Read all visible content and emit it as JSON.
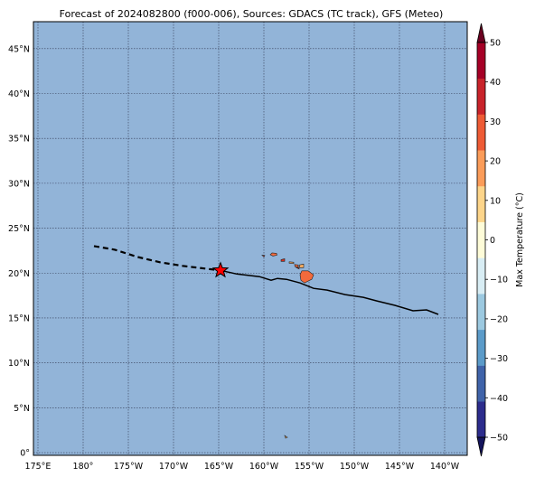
{
  "title": "Forecast of 2024082800 (f000-006), Sources: GDACS (TC track), GFS (Meteo)",
  "map": {
    "lon_range": [
      174.5,
      222.5
    ],
    "lat_range": [
      -0.3,
      48
    ],
    "ocean_color": "#92b4d8",
    "grid": true,
    "lon_ticks": [
      {
        "lon": 175,
        "label": "175°E"
      },
      {
        "lon": 180,
        "label": "180°"
      },
      {
        "lon": 185,
        "label": "175°W"
      },
      {
        "lon": 190,
        "label": "170°W"
      },
      {
        "lon": 195,
        "label": "165°W"
      },
      {
        "lon": 200,
        "label": "160°W"
      },
      {
        "lon": 205,
        "label": "155°W"
      },
      {
        "lon": 210,
        "label": "150°W"
      },
      {
        "lon": 215,
        "label": "145°W"
      },
      {
        "lon": 220,
        "label": "140°W"
      }
    ],
    "lat_ticks": [
      {
        "lat": 0,
        "label": "0°"
      },
      {
        "lat": 5,
        "label": "5°N"
      },
      {
        "lat": 10,
        "label": "10°N"
      },
      {
        "lat": 15,
        "label": "15°N"
      },
      {
        "lat": 20,
        "label": "20°N"
      },
      {
        "lat": 25,
        "label": "25°N"
      },
      {
        "lat": 30,
        "label": "30°N"
      },
      {
        "lat": 35,
        "label": "35°N"
      },
      {
        "lat": 40,
        "label": "40°N"
      },
      {
        "lat": 45,
        "label": "45°N"
      }
    ]
  },
  "track": {
    "past": [
      [
        181.2,
        23.0
      ],
      [
        183.5,
        22.6
      ],
      [
        186.0,
        21.8
      ],
      [
        188.5,
        21.2
      ],
      [
        191.0,
        20.8
      ],
      [
        193.5,
        20.5
      ],
      [
        195.2,
        20.3
      ]
    ],
    "forecast": [
      [
        195.2,
        20.3
      ],
      [
        197.0,
        19.9
      ],
      [
        199.5,
        19.6
      ],
      [
        200.8,
        19.2
      ],
      [
        201.5,
        19.4
      ],
      [
        202.5,
        19.3
      ],
      [
        204.0,
        18.9
      ],
      [
        205.5,
        18.3
      ],
      [
        207.0,
        18.1
      ],
      [
        209.0,
        17.6
      ],
      [
        211.0,
        17.3
      ],
      [
        212.5,
        16.9
      ],
      [
        214.5,
        16.4
      ],
      [
        216.5,
        15.8
      ],
      [
        218.0,
        15.9
      ],
      [
        219.3,
        15.4
      ]
    ],
    "current_position": [
      195.2,
      20.3
    ],
    "marker_color": "#ff0000"
  },
  "islands": [
    {
      "name": "",
      "lonlat": [
        [
          201.4,
          22.2
        ],
        [
          200.9,
          22.25
        ],
        [
          200.7,
          22.05
        ],
        [
          201.0,
          21.9
        ],
        [
          201.45,
          22.0
        ]
      ]
    },
    {
      "name": "",
      "lonlat": [
        [
          201.9,
          21.5
        ],
        [
          202.3,
          21.6
        ],
        [
          202.3,
          21.3
        ],
        [
          201.9,
          21.3
        ]
      ]
    },
    {
      "name": "",
      "lonlat": [
        [
          202.8,
          21.25
        ],
        [
          203.3,
          21.2
        ],
        [
          203.3,
          21.05
        ],
        [
          202.8,
          21.1
        ]
      ]
    },
    {
      "name": "",
      "lonlat": [
        [
          203.4,
          20.95
        ],
        [
          203.8,
          20.9
        ],
        [
          203.8,
          20.65
        ],
        [
          203.45,
          20.7
        ]
      ]
    },
    {
      "name": "",
      "lonlat": [
        [
          203.6,
          20.6
        ],
        [
          203.9,
          20.65
        ],
        [
          203.9,
          20.45
        ]
      ]
    },
    {
      "name": "",
      "lonlat": [
        [
          203.9,
          20.9
        ],
        [
          204.4,
          21.0
        ],
        [
          204.4,
          20.6
        ],
        [
          204.0,
          20.6
        ]
      ]
    },
    {
      "name": "",
      "lonlat": [
        [
          204.2,
          20.25
        ],
        [
          204.9,
          20.25
        ],
        [
          205.5,
          19.8
        ],
        [
          205.3,
          19.3
        ],
        [
          204.5,
          18.9
        ],
        [
          204.1,
          19.2
        ],
        [
          204.0,
          19.8
        ]
      ]
    },
    {
      "name": "",
      "lonlat": [
        [
          199.8,
          22.0
        ],
        [
          200.1,
          21.95
        ],
        [
          200.0,
          21.8
        ]
      ]
    },
    {
      "name": "",
      "lonlat": [
        [
          202.3,
          1.9
        ],
        [
          202.6,
          1.7
        ],
        [
          202.4,
          1.6
        ]
      ]
    }
  ],
  "island_colors": [
    "#f26a3c",
    "#d7301f",
    "#fdae61"
  ],
  "colorbar": {
    "label": "Max Temperature (°C)",
    "levels": [
      -50,
      -40,
      -30,
      -20,
      -10,
      0,
      10,
      20,
      30,
      40,
      50
    ],
    "tick_labels": [
      "50",
      "40",
      "30",
      "20",
      "10",
      "0",
      "−10",
      "−20",
      "−30",
      "−40",
      "−50"
    ],
    "colors": [
      "#2c2c8c",
      "#3f63a9",
      "#5b9bc9",
      "#9cc9e0",
      "#d8edf4",
      "#fefcd8",
      "#fdd58a",
      "#fb9c59",
      "#ee5b35",
      "#c8232a",
      "#a50026"
    ],
    "under_color": "#14145c",
    "over_color": "#6b0020"
  }
}
